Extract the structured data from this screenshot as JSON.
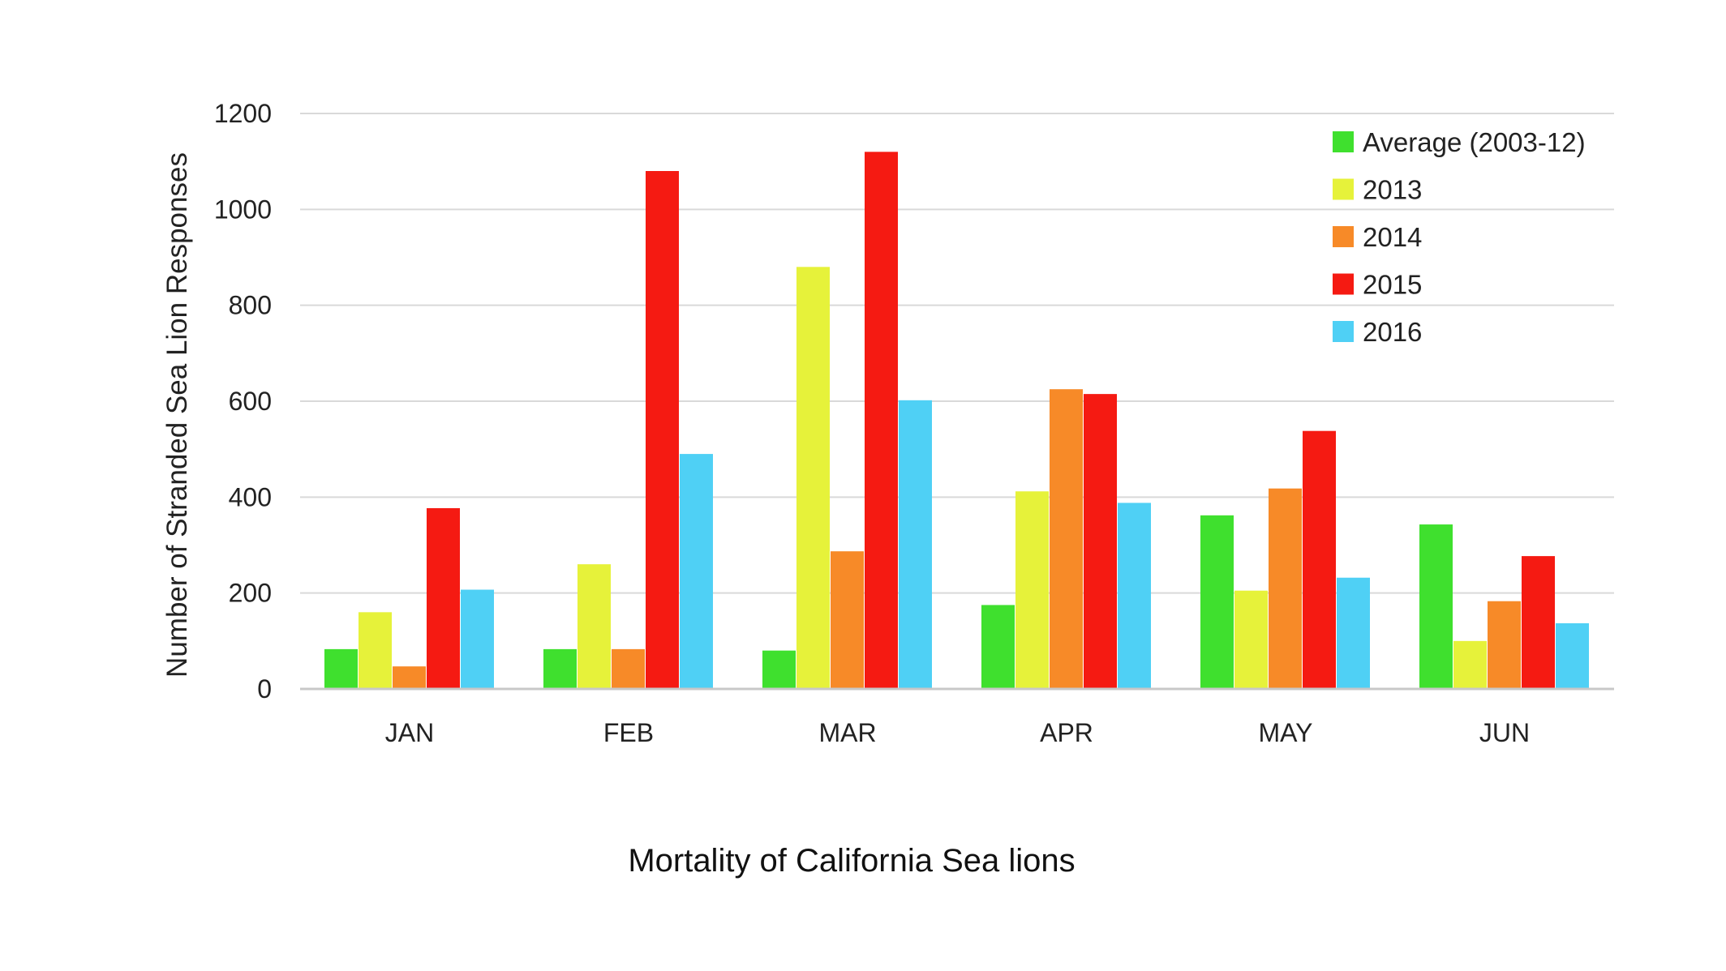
{
  "chart_data": {
    "type": "bar",
    "title": "Mortality of California Sea lions",
    "xlabel": "",
    "ylabel": "Number of Stranded Sea Lion Responses",
    "ylim": [
      0,
      1200
    ],
    "yticks": [
      0,
      200,
      400,
      600,
      800,
      1000,
      1200
    ],
    "grid": true,
    "legend_position": "top-right",
    "categories": [
      "JAN",
      "FEB",
      "MAR",
      "APR",
      "MAY",
      "JUN"
    ],
    "series": [
      {
        "name": "Average (2003-12)",
        "color": "#3fe02e",
        "values": [
          83,
          83,
          80,
          175,
          362,
          343
        ]
      },
      {
        "name": "2013",
        "color": "#e6f23a",
        "values": [
          160,
          260,
          880,
          412,
          205,
          100
        ]
      },
      {
        "name": "2014",
        "color": "#f78a28",
        "values": [
          47,
          83,
          287,
          625,
          418,
          183
        ]
      },
      {
        "name": "2015",
        "color": "#f51a12",
        "values": [
          377,
          1080,
          1120,
          615,
          538,
          277
        ]
      },
      {
        "name": "2016",
        "color": "#4fd0f5",
        "values": [
          207,
          490,
          602,
          388,
          232,
          137
        ]
      }
    ]
  }
}
